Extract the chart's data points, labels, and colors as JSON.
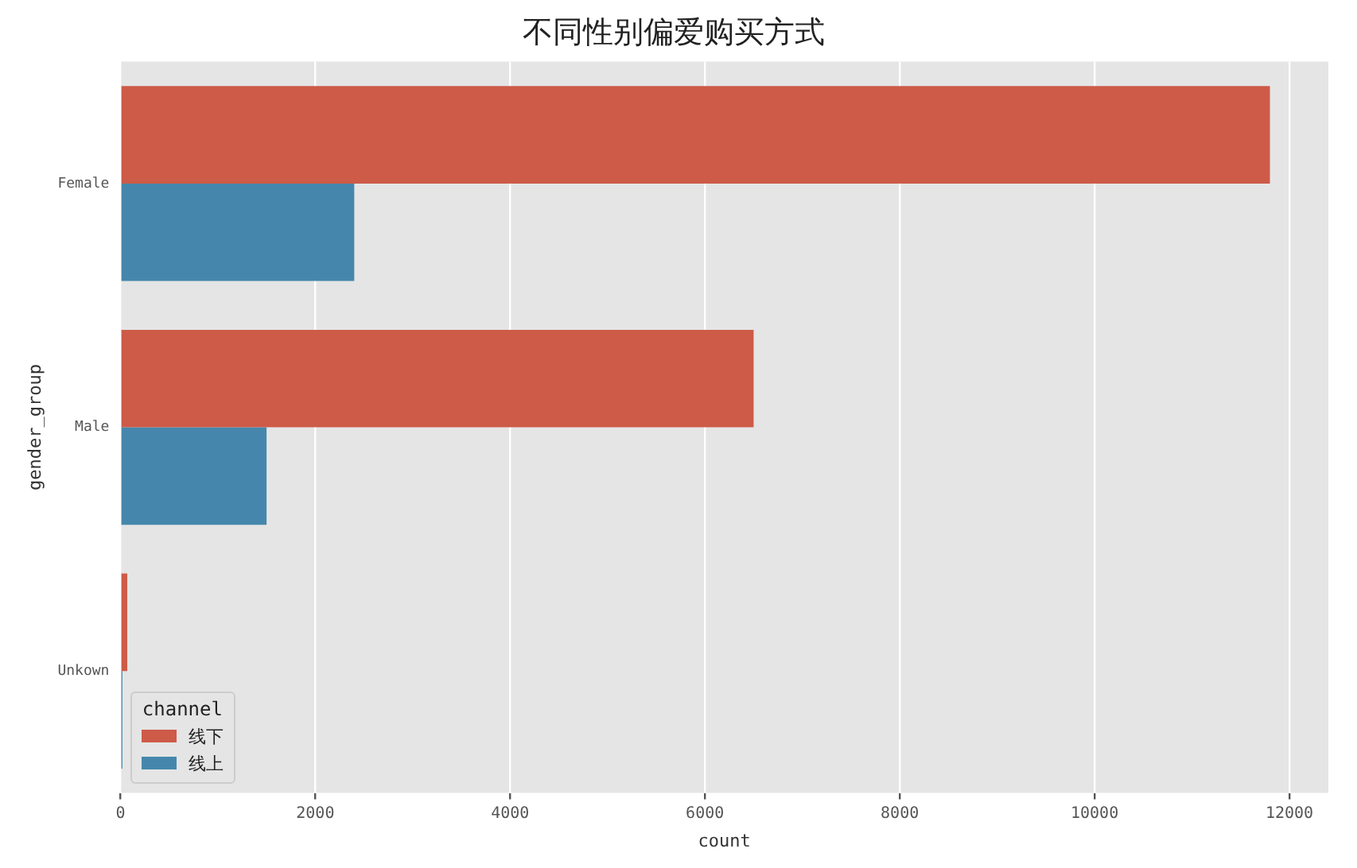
{
  "chart_data": {
    "type": "bar",
    "orientation": "horizontal",
    "title": "不同性别偏爱购买方式",
    "xlabel": "count",
    "ylabel": "gender_group",
    "legend_title": "channel",
    "categories": [
      "Female",
      "Male",
      "Unkown"
    ],
    "series": [
      {
        "name": "线下",
        "color": "#cd5b48",
        "values": [
          11800,
          6500,
          70
        ]
      },
      {
        "name": "线上",
        "color": "#4587ac",
        "values": [
          2400,
          1500,
          20
        ]
      }
    ],
    "xlim": [
      0,
      12400
    ],
    "xticks": [
      0,
      2000,
      4000,
      6000,
      8000,
      10000,
      12000
    ],
    "grid": "x",
    "legend": "bottom left"
  }
}
